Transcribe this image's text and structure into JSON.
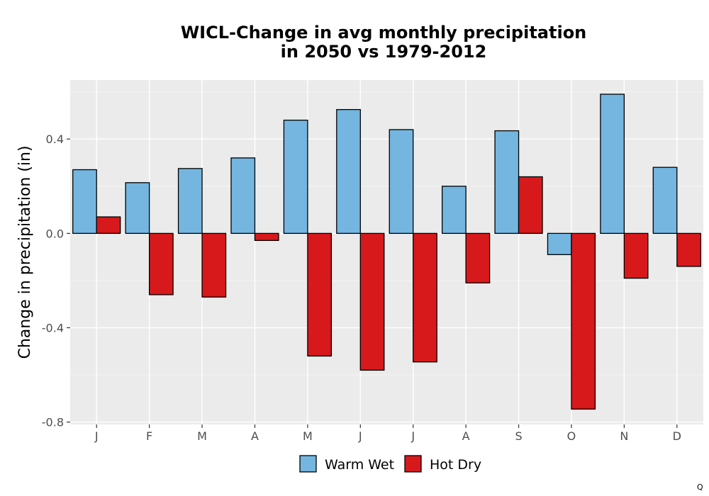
{
  "chart_data": {
    "type": "bar",
    "title": [
      "WICL-Change in avg monthly precipitation",
      "in 2050 vs 1979-2012"
    ],
    "xlabel": "",
    "ylabel": "Change in precipitation (in)",
    "categories": [
      "J",
      "F",
      "M",
      "A",
      "M",
      "J",
      "J",
      "A",
      "S",
      "O",
      "N",
      "D"
    ],
    "series": [
      {
        "name": "Warm Wet",
        "color": "#74b6e0",
        "values": [
          0.27,
          0.215,
          0.275,
          0.32,
          0.48,
          0.525,
          0.44,
          0.2,
          0.435,
          -0.09,
          0.59,
          0.28
        ]
      },
      {
        "name": "Hot Dry",
        "color": "#d7191c",
        "values": [
          0.07,
          -0.26,
          -0.27,
          -0.03,
          -0.52,
          -0.58,
          -0.545,
          -0.21,
          0.24,
          -0.745,
          -0.19,
          -0.14
        ]
      }
    ],
    "ylim": [
      -0.81,
      0.65
    ],
    "yticks": [
      -0.8,
      -0.4,
      0.0,
      0.4
    ],
    "ytick_labels": [
      "-0.8",
      "-0.4",
      "0.0",
      "0.4"
    ],
    "grid": true,
    "legend_position": "bottom"
  },
  "corner_mark": "Q"
}
